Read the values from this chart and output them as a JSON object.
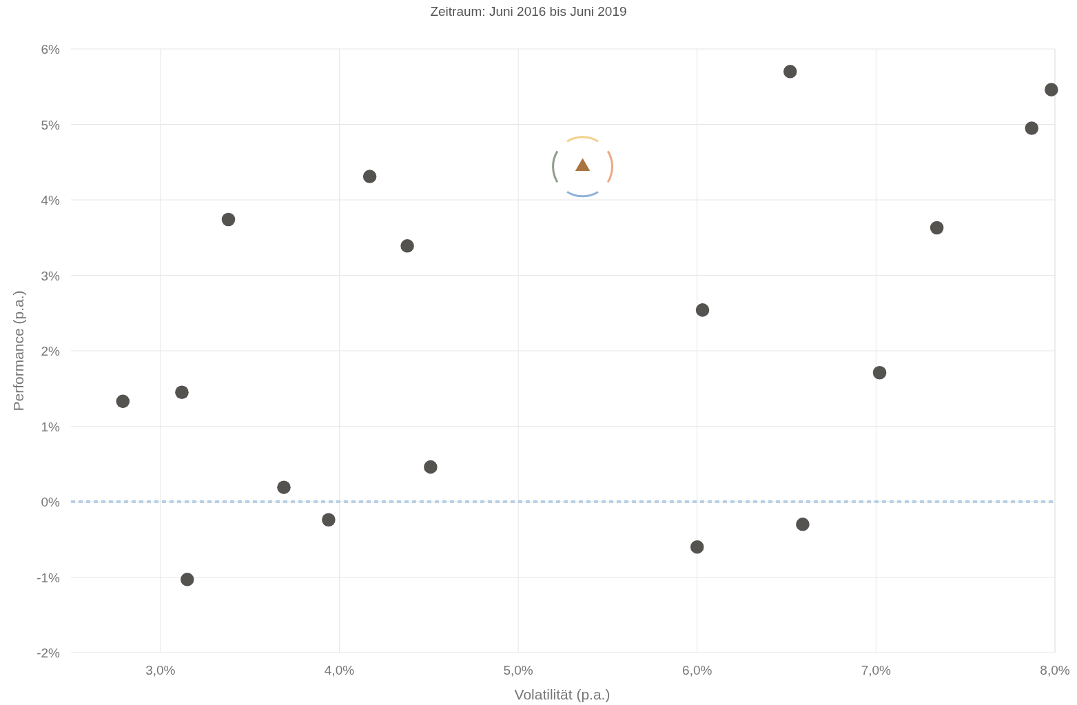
{
  "chart_data": {
    "type": "scatter",
    "title": "Zeitraum: Juni 2016 bis Juni 2019",
    "xlabel": "Volatilität (p.a.)",
    "ylabel": "Performance (p.a.)",
    "xlim": [
      2.5,
      8.0
    ],
    "xticks": [
      {
        "value": 3,
        "label": "3,0%"
      },
      {
        "value": 4,
        "label": "4,0%"
      },
      {
        "value": 5,
        "label": "5,0%"
      },
      {
        "value": 6,
        "label": "6,0%"
      },
      {
        "value": 7,
        "label": "7,0%"
      },
      {
        "value": 8,
        "label": "8,0%"
      }
    ],
    "ylim": [
      -2,
      6
    ],
    "yticks": [
      {
        "value": -2,
        "label": "-2%"
      },
      {
        "value": -1,
        "label": "-1%"
      },
      {
        "value": 0,
        "label": "0%"
      },
      {
        "value": 1,
        "label": "1%"
      },
      {
        "value": 2,
        "label": "2%"
      },
      {
        "value": 3,
        "label": "3%"
      },
      {
        "value": 4,
        "label": "4%"
      },
      {
        "value": 5,
        "label": "5%"
      },
      {
        "value": 6,
        "label": "6%"
      }
    ],
    "grid": true,
    "ref_lines": [
      {
        "axis": "y",
        "value": 0,
        "color": "#b8cfe6",
        "line_style": "dashed"
      }
    ],
    "series": [
      {
        "marker": "circle",
        "color": "#555350",
        "x": [
          2.79,
          3.12,
          3.15,
          3.38,
          3.69,
          3.94,
          4.17,
          4.38,
          4.51,
          6.0,
          6.03,
          6.52,
          6.59,
          7.02,
          7.34,
          7.87,
          7.98
        ],
        "values": [
          1.33,
          1.45,
          -1.03,
          3.74,
          0.19,
          -0.24,
          4.31,
          3.39,
          0.46,
          -0.6,
          2.54,
          5.7,
          -0.3,
          1.71,
          3.63,
          4.95,
          5.46
        ]
      },
      {
        "marker": "triangle",
        "color": "#a8743f",
        "x": [
          5.36
        ],
        "values": [
          4.44
        ]
      }
    ]
  }
}
